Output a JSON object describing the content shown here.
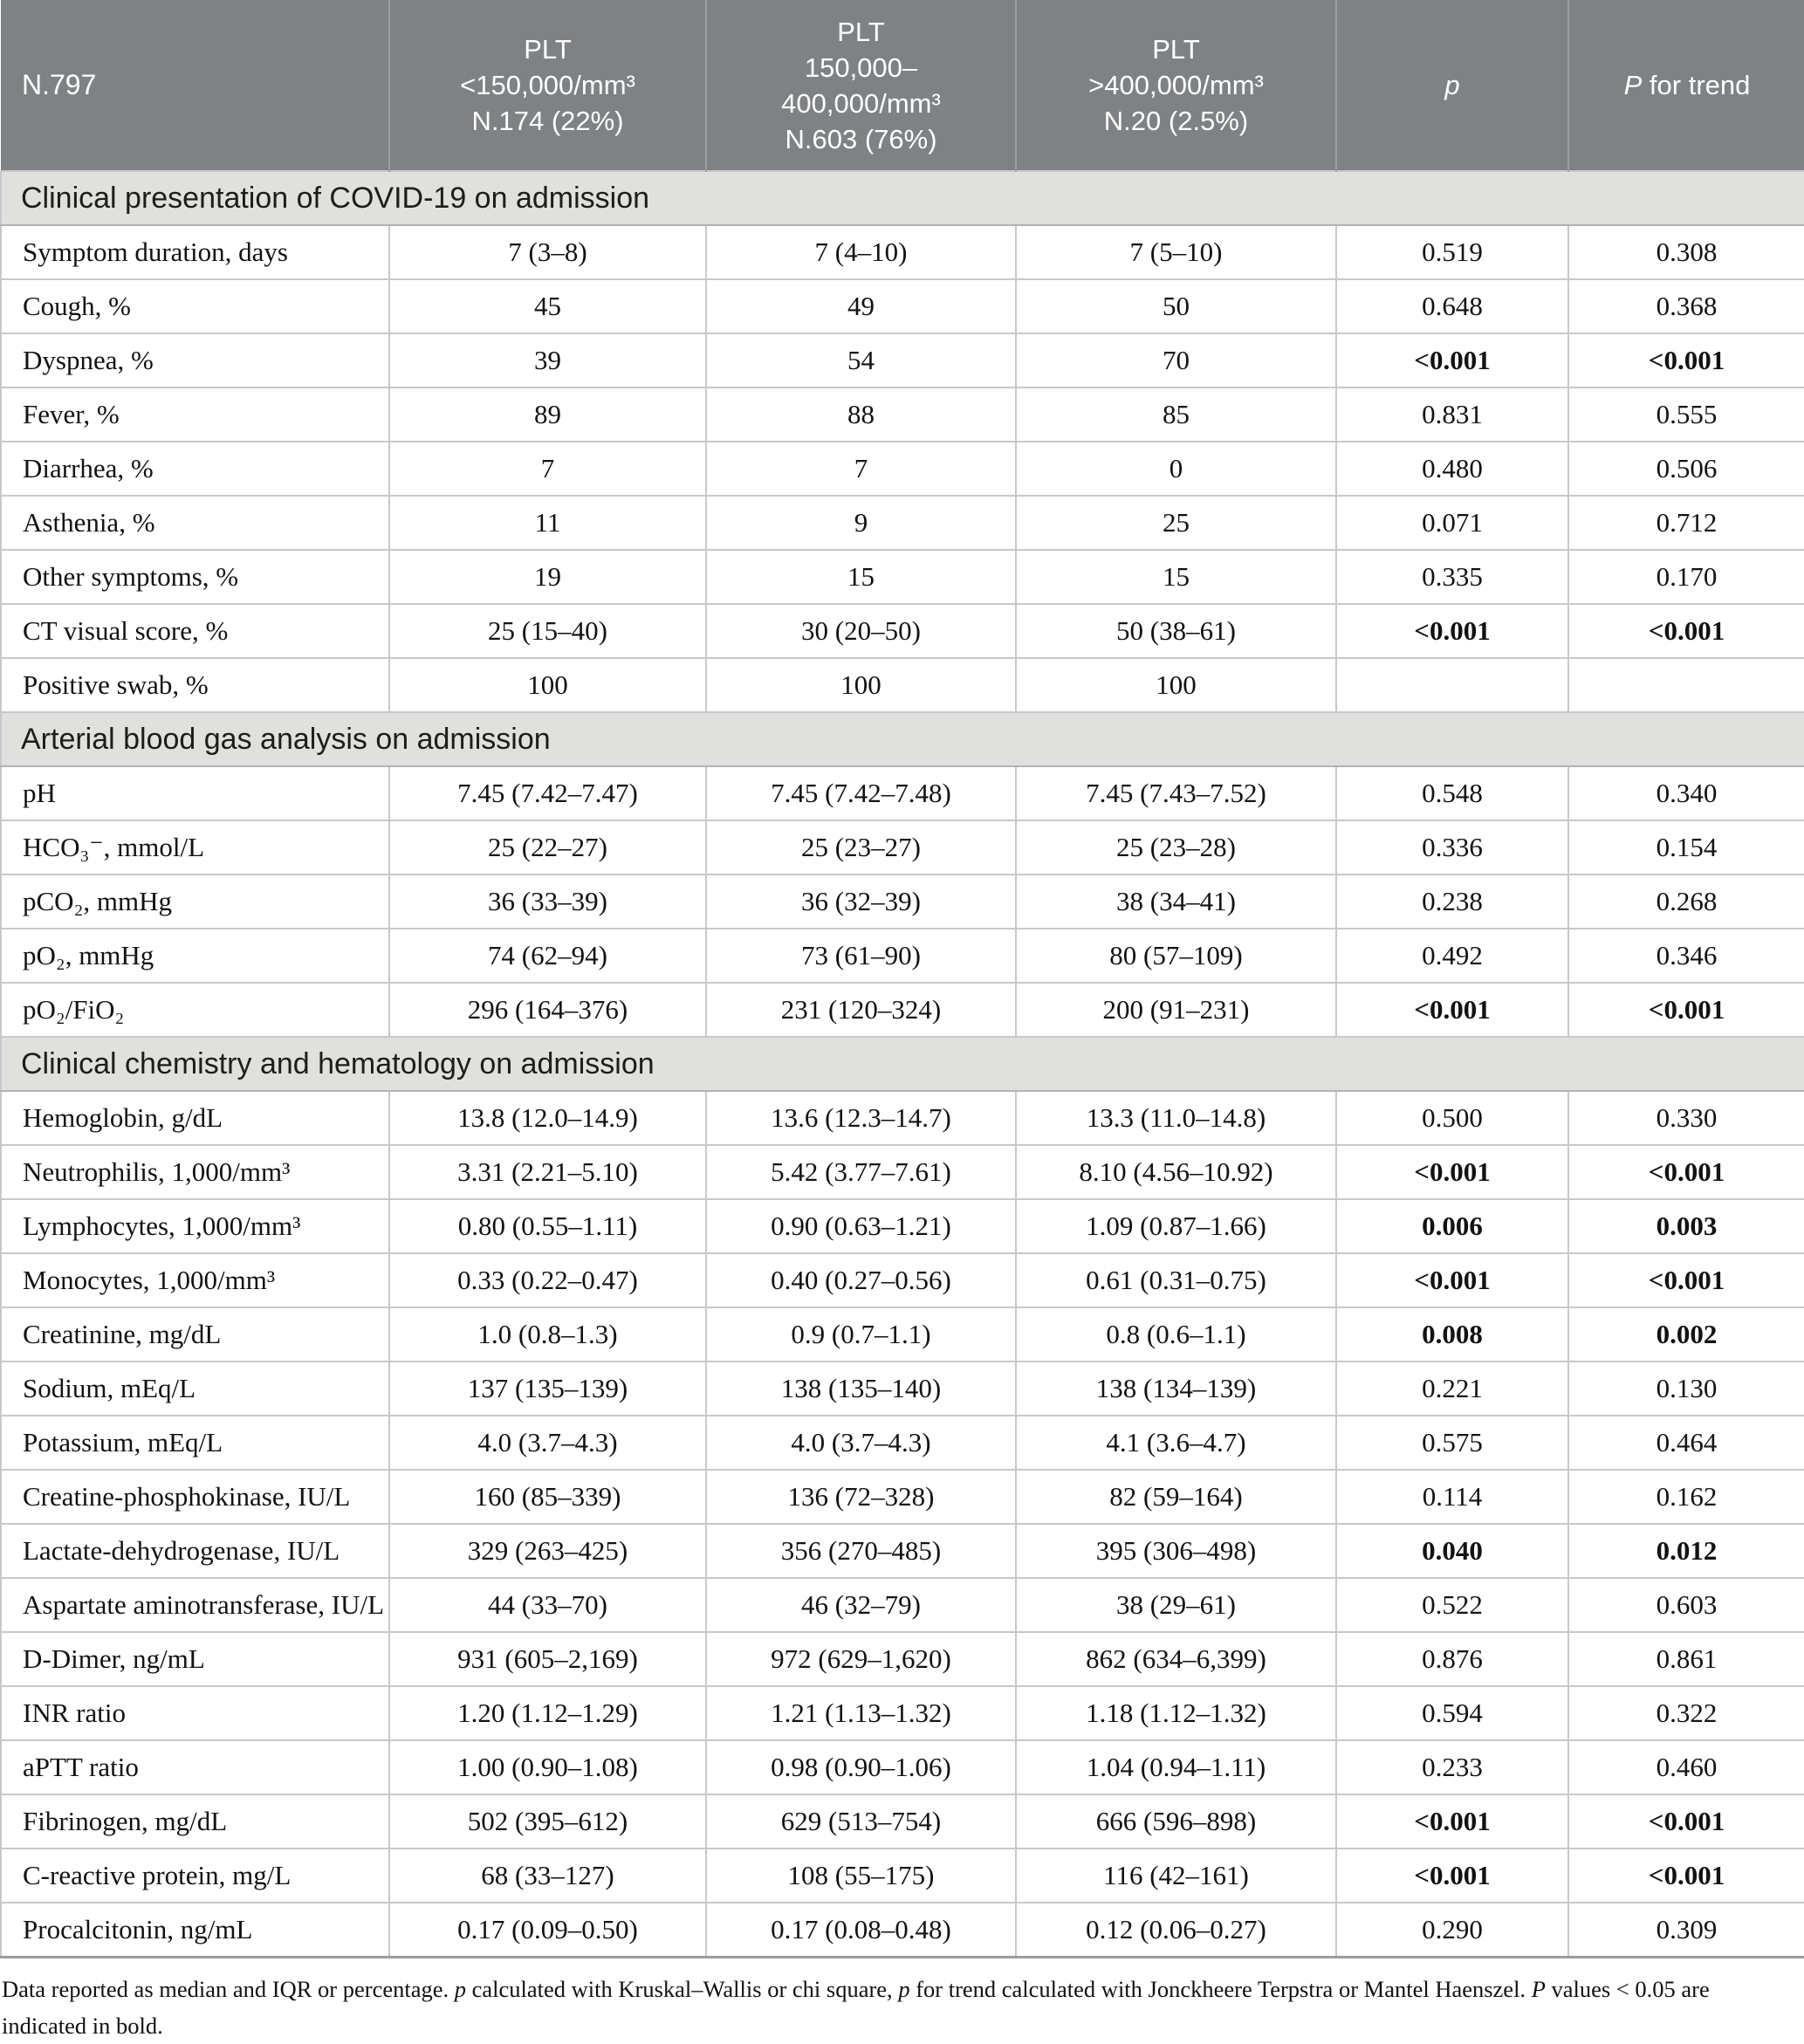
{
  "table": {
    "header": {
      "row_label": "N.797",
      "group_cols": [
        {
          "name": "plt-low",
          "lines": [
            "PLT",
            "<150,000/mm³",
            "N.174 (22%)"
          ]
        },
        {
          "name": "plt-mid",
          "lines": [
            "PLT",
            "150,000–",
            "400,000/mm³",
            "N.603 (76%)"
          ]
        },
        {
          "name": "plt-high",
          "lines": [
            "PLT",
            ">400,000/mm³",
            "N.20 (2.5%)"
          ]
        }
      ],
      "p_label": "p",
      "p_trend_label_italic": "P",
      "p_trend_label_rest": " for trend"
    },
    "sections": [
      {
        "title": "Clinical presentation of COVID-19 on admission",
        "rows": [
          {
            "label": "Symptom duration, days",
            "values": [
              "7 (3–8)",
              "7 (4–10)",
              "7 (5–10)"
            ],
            "p": "0.519",
            "p_trend": "0.308",
            "significant": false
          },
          {
            "label": "Cough, %",
            "values": [
              "45",
              "49",
              "50"
            ],
            "p": "0.648",
            "p_trend": "0.368",
            "significant": false
          },
          {
            "label": "Dyspnea, %",
            "values": [
              "39",
              "54",
              "70"
            ],
            "p": "<0.001",
            "p_trend": "<0.001",
            "significant": true
          },
          {
            "label": "Fever, %",
            "values": [
              "89",
              "88",
              "85"
            ],
            "p": "0.831",
            "p_trend": "0.555",
            "significant": false
          },
          {
            "label": "Diarrhea, %",
            "values": [
              "7",
              "7",
              "0"
            ],
            "p": "0.480",
            "p_trend": "0.506",
            "significant": false
          },
          {
            "label": "Asthenia, %",
            "values": [
              "11",
              "9",
              "25"
            ],
            "p": "0.071",
            "p_trend": "0.712",
            "significant": false
          },
          {
            "label": "Other symptoms, %",
            "values": [
              "19",
              "15",
              "15"
            ],
            "p": "0.335",
            "p_trend": "0.170",
            "significant": false
          },
          {
            "label": "CT visual score, %",
            "values": [
              "25 (15–40)",
              "30 (20–50)",
              "50 (38–61)"
            ],
            "p": "<0.001",
            "p_trend": "<0.001",
            "significant": true
          },
          {
            "label": "Positive swab, %",
            "values": [
              "100",
              "100",
              "100"
            ],
            "p": "",
            "p_trend": "",
            "significant": false
          }
        ]
      },
      {
        "title": "Arterial blood gas analysis on admission",
        "rows": [
          {
            "label": "pH",
            "values": [
              "7.45 (7.42–7.47)",
              "7.45 (7.42–7.48)",
              "7.45 (7.43–7.52)"
            ],
            "p": "0.548",
            "p_trend": "0.340",
            "significant": false
          },
          {
            "label": "HCO₃⁻, mmol/L",
            "values": [
              "25 (22–27)",
              "25 (23–27)",
              "25 (23–28)"
            ],
            "p": "0.336",
            "p_trend": "0.154",
            "significant": false
          },
          {
            "label": "pCO₂, mmHg",
            "values": [
              "36 (33–39)",
              "36 (32–39)",
              "38 (34–41)"
            ],
            "p": "0.238",
            "p_trend": "0.268",
            "significant": false
          },
          {
            "label": "pO₂, mmHg",
            "values": [
              "74 (62–94)",
              "73 (61–90)",
              "80 (57–109)"
            ],
            "p": "0.492",
            "p_trend": "0.346",
            "significant": false
          },
          {
            "label": "pO₂/FiO₂",
            "values": [
              "296 (164–376)",
              "231 (120–324)",
              "200 (91–231)"
            ],
            "p": "<0.001",
            "p_trend": "<0.001",
            "significant": true
          }
        ]
      },
      {
        "title": "Clinical chemistry and hematology on admission",
        "rows": [
          {
            "label": "Hemoglobin, g/dL",
            "values": [
              "13.8 (12.0–14.9)",
              "13.6 (12.3–14.7)",
              "13.3 (11.0–14.8)"
            ],
            "p": "0.500",
            "p_trend": "0.330",
            "significant": false
          },
          {
            "label": "Neutrophilis, 1,000/mm³",
            "values": [
              "3.31 (2.21–5.10)",
              "5.42 (3.77–7.61)",
              "8.10 (4.56–10.92)"
            ],
            "p": "<0.001",
            "p_trend": "<0.001",
            "significant": true
          },
          {
            "label": "Lymphocytes, 1,000/mm³",
            "values": [
              "0.80 (0.55–1.11)",
              "0.90 (0.63–1.21)",
              "1.09 (0.87–1.66)"
            ],
            "p": "0.006",
            "p_trend": "0.003",
            "significant": true
          },
          {
            "label": "Monocytes, 1,000/mm³",
            "values": [
              "0.33 (0.22–0.47)",
              "0.40 (0.27–0.56)",
              "0.61 (0.31–0.75)"
            ],
            "p": "<0.001",
            "p_trend": "<0.001",
            "significant": true
          },
          {
            "label": "Creatinine, mg/dL",
            "values": [
              "1.0 (0.8–1.3)",
              "0.9 (0.7–1.1)",
              "0.8 (0.6–1.1)"
            ],
            "p": "0.008",
            "p_trend": "0.002",
            "significant": true
          },
          {
            "label": "Sodium, mEq/L",
            "values": [
              "137 (135–139)",
              "138 (135–140)",
              "138 (134–139)"
            ],
            "p": "0.221",
            "p_trend": "0.130",
            "significant": false
          },
          {
            "label": "Potassium, mEq/L",
            "values": [
              "4.0 (3.7–4.3)",
              "4.0 (3.7–4.3)",
              "4.1 (3.6–4.7)"
            ],
            "p": "0.575",
            "p_trend": "0.464",
            "significant": false
          },
          {
            "label": "Creatine-phosphokinase, IU/L",
            "values": [
              "160 (85–339)",
              "136 (72–328)",
              "82 (59–164)"
            ],
            "p": "0.114",
            "p_trend": "0.162",
            "significant": false
          },
          {
            "label": "Lactate-dehydrogenase, IU/L",
            "values": [
              "329 (263–425)",
              "356 (270–485)",
              "395 (306–498)"
            ],
            "p": "0.040",
            "p_trend": "0.012",
            "significant": true
          },
          {
            "label": "Aspartate aminotransferase, IU/L",
            "values": [
              "44 (33–70)",
              "46 (32–79)",
              "38 (29–61)"
            ],
            "p": "0.522",
            "p_trend": "0.603",
            "significant": false
          },
          {
            "label": "D-Dimer, ng/mL",
            "values": [
              "931 (605–2,169)",
              "972 (629–1,620)",
              "862 (634–6,399)"
            ],
            "p": "0.876",
            "p_trend": "0.861",
            "significant": false
          },
          {
            "label": "INR ratio",
            "values": [
              "1.20 (1.12–1.29)",
              "1.21 (1.13–1.32)",
              "1.18 (1.12–1.32)"
            ],
            "p": "0.594",
            "p_trend": "0.322",
            "significant": false
          },
          {
            "label": "aPTT ratio",
            "values": [
              "1.00 (0.90–1.08)",
              "0.98 (0.90–1.06)",
              "1.04 (0.94–1.11)"
            ],
            "p": "0.233",
            "p_trend": "0.460",
            "significant": false
          },
          {
            "label": "Fibrinogen, mg/dL",
            "values": [
              "502 (395–612)",
              "629 (513–754)",
              "666 (596–898)"
            ],
            "p": "<0.001",
            "p_trend": "<0.001",
            "significant": true
          },
          {
            "label": "C-reactive protein, mg/L",
            "values": [
              "68 (33–127)",
              "108 (55–175)",
              "116 (42–161)"
            ],
            "p": "<0.001",
            "p_trend": "<0.001",
            "significant": true
          },
          {
            "label": "Procalcitonin, ng/mL",
            "values": [
              "0.17 (0.09–0.50)",
              "0.17 (0.08–0.48)",
              "0.12 (0.06–0.27)"
            ],
            "p": "0.290",
            "p_trend": "0.309",
            "significant": false
          }
        ]
      }
    ]
  },
  "footnote": {
    "segments": [
      {
        "text": "Data reported as median and IQR or percentage. ",
        "italic": false
      },
      {
        "text": "p",
        "italic": true
      },
      {
        "text": " calculated with Kruskal–Wallis or chi square, ",
        "italic": false
      },
      {
        "text": "p",
        "italic": true
      },
      {
        "text": " for trend calculated with Jonckheere Terpstra or Mantel Haenszel. ",
        "italic": false
      },
      {
        "text": "P",
        "italic": true
      },
      {
        "text": " values < 0.05 are indicated in bold.",
        "italic": false
      }
    ]
  },
  "colors": {
    "header_bg": "#7f8284",
    "header_divider": "#9a9c9e",
    "header_text": "#ffffff",
    "section_bg": "#e0e0de",
    "section_text": "#1d1d1b",
    "body_text": "#121212",
    "border": "#c9c9c9",
    "section_border_bottom": "#b2b2b0",
    "table_bottom": "#9d9d9d",
    "page_bg": "#ffffff"
  }
}
